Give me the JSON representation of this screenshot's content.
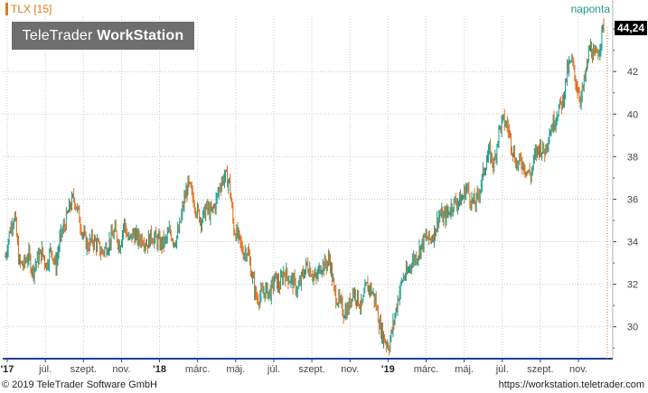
{
  "header": {
    "symbol": "TLX [15]",
    "interval": "naponta",
    "watermark_light": "TeleTrader ",
    "watermark_bold": "WorkStation",
    "last_price": "44,24"
  },
  "footer": {
    "copyright": "© 2019 TeleTrader Software GmbH",
    "url": "https://workstation.teletrader.com"
  },
  "colors": {
    "up": "#1a9a8a",
    "down": "#e06a18",
    "grid": "#c8c8c8",
    "axis": "#1f3f8f",
    "label_accent": "#e07a10"
  },
  "chart_data": {
    "type": "line",
    "series": [
      {
        "name": "TLX [15]",
        "style": "ohlc-bars",
        "close": [
          33.3,
          34.6,
          35.3,
          33.0,
          32.9,
          33.4,
          32.6,
          33.2,
          33.5,
          32.9,
          33.7,
          32.8,
          34.2,
          34.8,
          35.6,
          36.1,
          35.3,
          34.3,
          33.8,
          34.1,
          33.9,
          33.5,
          33.7,
          34.1,
          34.5,
          33.8,
          34.9,
          34.0,
          34.4,
          34.1,
          34.2,
          33.9,
          34.3,
          34.1,
          33.9,
          34.0,
          34.5,
          34.0,
          34.5,
          35.8,
          36.7,
          36.1,
          35.4,
          35.0,
          35.6,
          35.3,
          35.8,
          36.7,
          37.1,
          36.8,
          34.6,
          34.2,
          33.5,
          33.6,
          32.4,
          31.3,
          31.5,
          31.7,
          31.6,
          32.3,
          31.9,
          32.6,
          32.3,
          32.1,
          31.7,
          32.4,
          32.9,
          32.6,
          32.2,
          32.9,
          32.9,
          33.2,
          31.6,
          31.2,
          30.7,
          30.8,
          31.7,
          31.4,
          30.9,
          31.9,
          31.8,
          31.2,
          30.0,
          29.4,
          29.1,
          30.2,
          31.4,
          32.3,
          32.5,
          33.1,
          33.3,
          33.8,
          34.2,
          34.1,
          34.5,
          35.3,
          35.1,
          35.4,
          35.8,
          35.9,
          36.0,
          36.6,
          35.9,
          35.8,
          36.6,
          37.6,
          38.2,
          37.6,
          39.2,
          39.7,
          39.4,
          38.4,
          37.6,
          37.8,
          37.4,
          37.1,
          38.1,
          38.5,
          38.2,
          39.1,
          39.6,
          40.2,
          40.6,
          42.0,
          42.5,
          41.4,
          40.7,
          41.8,
          43.2,
          42.6,
          43.1,
          44.24
        ]
      }
    ],
    "x_ticks": [
      "'17",
      "júl.",
      "szept.",
      "nov.",
      "'18",
      "márc.",
      "máj.",
      "júl.",
      "szept.",
      "nov.",
      "'19",
      "márc.",
      "máj.",
      "júl.",
      "szept.",
      "nov."
    ],
    "y_ticks": [
      30,
      32,
      34,
      36,
      38,
      40,
      42
    ],
    "ylim": [
      28.5,
      44.6
    ],
    "y_axis_side": "right",
    "grid": true,
    "last_value_label": "44,24",
    "title": "",
    "xlabel": "",
    "ylabel": ""
  }
}
